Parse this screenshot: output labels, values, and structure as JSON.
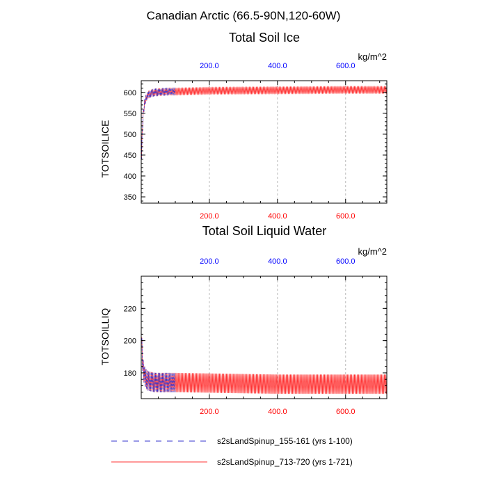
{
  "figure": {
    "main_title": "Canadian Arctic (66.5-90N,120-60W)"
  },
  "legend": [
    {
      "label": "s2sLandSpinup_155-161 (yrs 1-100)",
      "color": "#3333cc",
      "dash": "dashed"
    },
    {
      "label": "s2sLandSpinup_713-720 (yrs 1-721)",
      "color": "#ff3333",
      "dash": "solid"
    }
  ],
  "chart_data": [
    {
      "type": "line",
      "title": "Total Soil Ice",
      "units": "kg/m^2",
      "ylabel": "TOTSOILICE",
      "xlim": [
        0,
        721
      ],
      "ylim": [
        335,
        628
      ],
      "yticks": [
        "350",
        "400",
        "450",
        "500",
        "550",
        "600"
      ],
      "xticks_top": [
        "200.0",
        "400.0",
        "600.0"
      ],
      "xticks_bottom": [
        "200.0",
        "400.0",
        "600.0"
      ],
      "xticks_top_color": "#0000ff",
      "xticks_bottom_color": "#ff0000",
      "grid_x": true,
      "series": [
        {
          "name": "s2sLandSpinup_155-161 (yrs 1-100)",
          "color": "#3333cc",
          "dash": "dashed",
          "x_range": [
            1,
            100
          ],
          "seasonal_amplitude": 8,
          "x": [
            1,
            3,
            6,
            10,
            15,
            20,
            30,
            40,
            60,
            80,
            100
          ],
          "y": [
            440,
            510,
            550,
            575,
            588,
            594,
            598,
            600,
            601,
            602,
            602
          ]
        },
        {
          "name": "s2sLandSpinup_713-720 (yrs 1-721)",
          "color": "#ff3333",
          "dash": "solid",
          "x_range": [
            1,
            721
          ],
          "seasonal_amplitude": 8,
          "x": [
            1,
            3,
            6,
            10,
            15,
            20,
            30,
            40,
            60,
            80,
            100,
            200,
            400,
            600,
            721
          ],
          "y": [
            440,
            510,
            550,
            575,
            588,
            594,
            598,
            600,
            601,
            602,
            602,
            604,
            605,
            606,
            606
          ]
        }
      ]
    },
    {
      "type": "line",
      "title": "Total Soil Liquid Water",
      "units": "kg/m^2",
      "ylabel": "TOTSOILLIQ",
      "xlim": [
        0,
        721
      ],
      "ylim": [
        164,
        240
      ],
      "yticks": [
        "180",
        "200",
        "220"
      ],
      "xticks_top": [
        "200.0",
        "400.0",
        "600.0"
      ],
      "xticks_bottom": [
        "200.0",
        "400.0",
        "600.0"
      ],
      "xticks_top_color": "#0000ff",
      "xticks_bottom_color": "#ff0000",
      "grid_x": true,
      "series": [
        {
          "name": "s2sLandSpinup_155-161 (yrs 1-100)",
          "color": "#3333cc",
          "dash": "dashed",
          "x_range": [
            1,
            100
          ],
          "seasonal_amplitude": 6,
          "x": [
            1,
            3,
            6,
            10,
            15,
            20,
            40,
            60,
            100
          ],
          "y": [
            200,
            190,
            182,
            178,
            176,
            175,
            174,
            174,
            174
          ]
        },
        {
          "name": "s2sLandSpinup_713-720 (yrs 1-721)",
          "color": "#ff3333",
          "dash": "solid",
          "x_range": [
            1,
            721
          ],
          "seasonal_amplitude": 6,
          "x": [
            1,
            3,
            6,
            10,
            15,
            20,
            40,
            60,
            100,
            400,
            721
          ],
          "y": [
            200,
            190,
            182,
            178,
            176,
            175,
            174,
            174,
            174,
            173,
            173
          ]
        }
      ]
    }
  ]
}
